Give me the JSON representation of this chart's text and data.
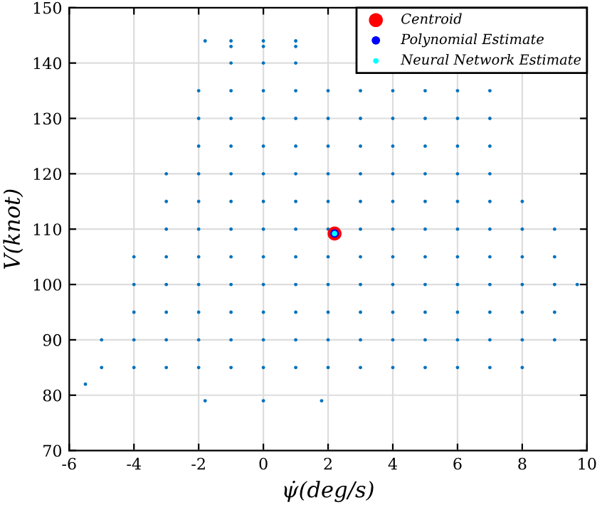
{
  "chart_data": {
    "type": "scatter",
    "xlabel": "ψ̇(deg/s)",
    "ylabel": "V(knot)",
    "xlim": [
      -6,
      10
    ],
    "ylim": [
      70,
      150
    ],
    "xticks": [
      -6,
      -4,
      -2,
      0,
      2,
      4,
      6,
      8,
      10
    ],
    "yticks": [
      70,
      80,
      90,
      100,
      110,
      120,
      130,
      140,
      150
    ],
    "grid": true,
    "legend": "top right",
    "marker": "circle",
    "series": [
      {
        "color": "#0072bd",
        "x": [
          -1.8,
          0,
          1.8,
          -5.5,
          9.7,
          -1.8,
          -1,
          0,
          1,
          -5,
          -4,
          -3,
          -2,
          -1,
          0,
          1,
          2,
          3,
          4,
          5,
          6,
          7,
          8,
          -5,
          -4,
          -3,
          -2,
          -1,
          0,
          1,
          2,
          3,
          4,
          5,
          6,
          7,
          8,
          9,
          -4,
          -3,
          -2,
          -1,
          0,
          1,
          2,
          3,
          4,
          5,
          6,
          7,
          8,
          9,
          -4,
          -3,
          -2,
          -1,
          0,
          1,
          2,
          3,
          4,
          5,
          6,
          7,
          8,
          9,
          -4,
          -3,
          -2,
          -1,
          0,
          1,
          2,
          3,
          4,
          5,
          6,
          7,
          8,
          9,
          -3,
          -2,
          -1,
          0,
          1,
          2,
          3,
          4,
          5,
          6,
          7,
          8,
          9,
          -3,
          -2,
          -1,
          0,
          1,
          2,
          3,
          4,
          5,
          6,
          7,
          8,
          -3,
          -2,
          -1,
          0,
          1,
          2,
          3,
          4,
          5,
          6,
          7,
          -2,
          -1,
          0,
          1,
          2,
          3,
          4,
          5,
          6,
          7,
          -2,
          -1,
          0,
          1,
          2,
          3,
          4,
          5,
          6,
          7,
          -2,
          -1,
          0,
          1,
          2,
          3,
          4,
          5,
          6,
          7,
          -1,
          0,
          1,
          -1,
          0,
          1
        ],
        "values": [
          79,
          79,
          79,
          82,
          100,
          144,
          144,
          144,
          144,
          85,
          85,
          85,
          85,
          85,
          85,
          85,
          85,
          85,
          85,
          85,
          85,
          85,
          85,
          90,
          90,
          90,
          90,
          90,
          90,
          90,
          90,
          90,
          90,
          90,
          90,
          90,
          90,
          90,
          95,
          95,
          95,
          95,
          95,
          95,
          95,
          95,
          95,
          95,
          95,
          95,
          95,
          95,
          100,
          100,
          100,
          100,
          100,
          100,
          100,
          100,
          100,
          100,
          100,
          100,
          100,
          100,
          105,
          105,
          105,
          105,
          105,
          105,
          105,
          105,
          105,
          105,
          105,
          105,
          105,
          105,
          110,
          110,
          110,
          110,
          110,
          110,
          110,
          110,
          110,
          110,
          110,
          110,
          110,
          115,
          115,
          115,
          115,
          115,
          115,
          115,
          115,
          115,
          115,
          115,
          115,
          120,
          120,
          120,
          120,
          120,
          120,
          120,
          120,
          120,
          120,
          120,
          125,
          125,
          125,
          125,
          125,
          125,
          125,
          125,
          125,
          125,
          130,
          130,
          130,
          130,
          130,
          130,
          130,
          130,
          130,
          130,
          135,
          135,
          135,
          135,
          135,
          135,
          135,
          135,
          135,
          135,
          140,
          140,
          140,
          143,
          143,
          143
        ]
      },
      {
        "name": "Centroid",
        "color": "#ff0000",
        "x": [
          2.2
        ],
        "values": [
          109.2
        ]
      },
      {
        "name": "Polynomial Estimate",
        "color": "#0000ff",
        "x": [
          2.2
        ],
        "values": [
          109.2
        ]
      },
      {
        "name": "Neural Network Estimate",
        "color": "#00ffff",
        "x": [
          2.2
        ],
        "values": [
          109.2
        ]
      }
    ]
  }
}
